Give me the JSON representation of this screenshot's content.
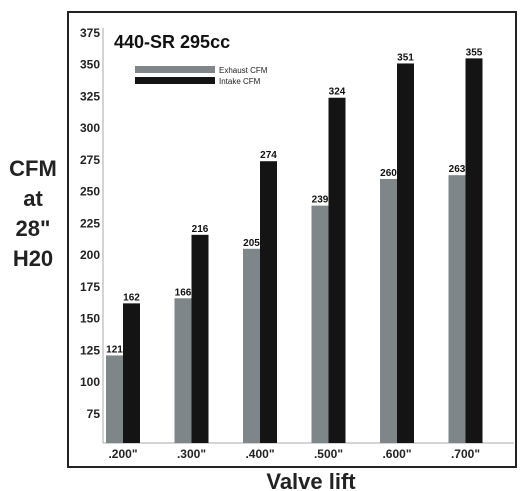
{
  "chart_data": {
    "type": "bar",
    "title": "440-SR 295cc",
    "xlabel": "Valve lift",
    "ylabel_lines": [
      "CFM",
      "at",
      "28\"",
      "H20"
    ],
    "categories": [
      ".200\"",
      ".300\"",
      ".400\"",
      ".500\"",
      ".600\"",
      ".700\""
    ],
    "series": [
      {
        "name": "Exhaust CFM",
        "color": "#7f868a",
        "values": [
          121,
          166,
          205,
          239,
          260,
          263
        ]
      },
      {
        "name": "Intake CFM",
        "color": "#141414",
        "values": [
          162,
          216,
          274,
          324,
          351,
          355
        ]
      }
    ],
    "y_ticks": [
      75,
      100,
      125,
      150,
      175,
      200,
      225,
      250,
      275,
      300,
      325,
      350,
      375
    ],
    "ylim": [
      52,
      375
    ],
    "grid": false,
    "legend_position": "top-left"
  }
}
